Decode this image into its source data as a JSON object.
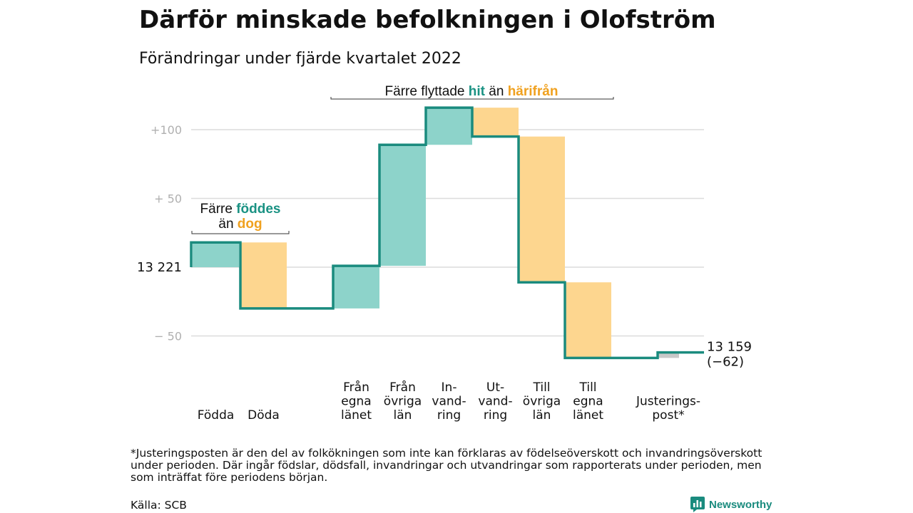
{
  "title": "Därför minskade befolkningen i Olofström",
  "subtitle": "Förändringar under fjärde kvartalet 2022",
  "footnote": "*Justeringsposten är den del av folkökningen som inte kan förklaras av födelseöverskott och invandringsöverskott under perioden. Där ingår födslar, dödsfall, invandringar och utvandringar som rapporterats under perioden, men som inträffat före periodens början.",
  "source": "Källa: SCB",
  "brand": {
    "name": "Newsworthy",
    "icon": "newsworthy-logo-icon"
  },
  "colors": {
    "increase": "#8dd3ca",
    "decrease": "#fdd68f",
    "adjustment": "#c8c8c8",
    "line": "#1a8b7e",
    "accent_teal": "#1a9283",
    "accent_orange": "#f0a11f"
  },
  "annotations": {
    "births_deaths": {
      "prefix": "Färre ",
      "hit": "föddes",
      "middle": "än ",
      "away": "dog"
    },
    "migration": {
      "prefix": "Färre flyttade ",
      "hit": "hit",
      "middle": " än ",
      "away": "härifrån"
    }
  },
  "chart_data": {
    "type": "waterfall",
    "start": {
      "label": "13 221",
      "value": 13221
    },
    "end": {
      "label": "13 159",
      "change_label": "(−62)",
      "value": 13159
    },
    "yticks": [
      {
        "value": 100,
        "label": "+100"
      },
      {
        "value": 50,
        "label": "+ 50"
      },
      {
        "value": 0,
        "label": "13 221"
      },
      {
        "value": -50,
        "label": "− 50"
      }
    ],
    "ylim": [
      -70,
      120
    ],
    "steps": [
      {
        "name": "Födda",
        "label_lines": [
          "Födda"
        ],
        "change": 18,
        "kind": "increase"
      },
      {
        "name": "Döda",
        "label_lines": [
          "Döda"
        ],
        "change": -48,
        "kind": "decrease"
      },
      {
        "name": "Från egna länet",
        "label_lines": [
          "Från",
          "egna",
          "länet"
        ],
        "change": 31,
        "kind": "increase"
      },
      {
        "name": "Från övriga län",
        "label_lines": [
          "Från",
          "övriga",
          "län"
        ],
        "change": 88,
        "kind": "increase"
      },
      {
        "name": "Invandring",
        "label_lines": [
          "In-",
          "vand-",
          "ring"
        ],
        "change": 27,
        "kind": "increase"
      },
      {
        "name": "Utvandring",
        "label_lines": [
          "Ut-",
          "vand-",
          "ring"
        ],
        "change": -21,
        "kind": "decrease"
      },
      {
        "name": "Till övriga län",
        "label_lines": [
          "Till",
          "övriga",
          "län"
        ],
        "change": -106,
        "kind": "decrease"
      },
      {
        "name": "Till egna länet",
        "label_lines": [
          "Till",
          "egna",
          "länet"
        ],
        "change": -55,
        "kind": "decrease"
      },
      {
        "name": "Justeringspost",
        "label_lines": [
          "Justerings-",
          "post*"
        ],
        "change": 4,
        "kind": "adjustment"
      }
    ]
  }
}
